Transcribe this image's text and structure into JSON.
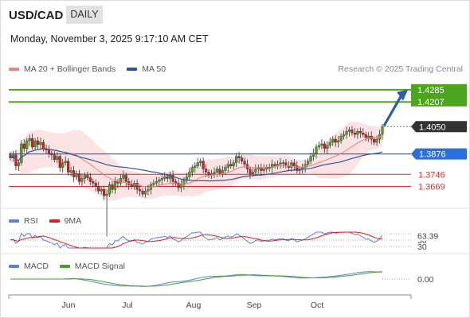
{
  "header": {
    "symbol": "USD/CAD",
    "timeframe": "DAILY",
    "datetime": "Monday, November 3, 2025 9:17:10 AM CET",
    "copyright": "Research © 2025 Trading Central"
  },
  "legend": {
    "main": [
      {
        "label": "MA 20 + Bollinger Bands",
        "color": "#f08080"
      },
      {
        "label": "MA 50",
        "color": "#2f5596"
      }
    ],
    "rsi": [
      {
        "label": "RSI",
        "color": "#5b7fd6"
      },
      {
        "label": "9MA",
        "color": "#d42020"
      }
    ],
    "macd": [
      {
        "label": "MACD",
        "color": "#5b7fd6"
      },
      {
        "label": "MACD Signal",
        "color": "#44a020"
      }
    ]
  },
  "chart_data": [
    {
      "type": "candlestick",
      "x_axis": {
        "tick_labels": [
          "Jun",
          "Jul",
          "Aug",
          "Sep",
          "Oct"
        ]
      },
      "y_range": [
        1.355,
        1.435
      ],
      "levels": [
        {
          "value": 1.4285,
          "label": "1.4285",
          "color": "#4ca51d",
          "style": "resistance"
        },
        {
          "value": 1.4207,
          "label": "1.4207",
          "color": "#4ca51d",
          "style": "resistance"
        },
        {
          "value": 1.405,
          "label": "1.4050",
          "color": "#333333",
          "style": "last-price"
        },
        {
          "value": 1.3876,
          "label": "1.3876",
          "color": "#2a6fdb",
          "style": "pivot"
        },
        {
          "value": 1.3746,
          "label": "1.3746",
          "color": "#d43030",
          "style": "support"
        },
        {
          "value": 1.3669,
          "label": "1.3669",
          "color": "#d43030",
          "style": "support"
        }
      ],
      "up_color": "#4ca51d",
      "down_color": "#d42020",
      "close": [
        1.385,
        1.387,
        1.38,
        1.382,
        1.394,
        1.391,
        1.396,
        1.3975,
        1.392,
        1.396,
        1.3935,
        1.395,
        1.391,
        1.39,
        1.388,
        1.387,
        1.384,
        1.386,
        1.379,
        1.382,
        1.383,
        1.376,
        1.377,
        1.373,
        1.375,
        1.37,
        1.372,
        1.374,
        1.3725,
        1.37,
        1.369,
        1.367,
        1.364,
        1.365,
        1.361,
        1.362,
        1.368,
        1.365,
        1.37,
        1.369,
        1.372,
        1.374,
        1.37,
        1.368,
        1.367,
        1.369,
        1.365,
        1.364,
        1.362,
        1.364,
        1.365,
        1.368,
        1.369,
        1.37,
        1.371,
        1.372,
        1.373,
        1.372,
        1.374,
        1.37,
        1.369,
        1.366,
        1.368,
        1.371,
        1.373,
        1.376,
        1.379,
        1.38,
        1.382,
        1.383,
        1.378,
        1.376,
        1.374,
        1.375,
        1.376,
        1.378,
        1.375,
        1.377,
        1.379,
        1.381,
        1.38,
        1.382,
        1.386,
        1.385,
        1.383,
        1.381,
        1.378,
        1.375,
        1.376,
        1.378,
        1.379,
        1.377,
        1.378,
        1.379,
        1.379,
        1.381,
        1.38,
        1.381,
        1.382,
        1.382,
        1.38,
        1.379,
        1.382,
        1.38,
        1.377,
        1.378,
        1.379,
        1.381,
        1.383,
        1.386,
        1.388,
        1.392,
        1.393,
        1.394,
        1.391,
        1.393,
        1.395,
        1.397,
        1.395,
        1.396,
        1.399,
        1.4,
        1.402,
        1.403,
        1.401,
        1.4,
        1.402,
        1.401,
        1.4,
        1.398,
        1.399,
        1.397,
        1.395,
        1.397,
        1.4,
        1.405
      ],
      "wicks": [
        {
          "index": 35,
          "low": 1.335
        }
      ],
      "overlays": [
        "MA 20",
        "Bollinger Bands",
        "MA 50"
      ]
    },
    {
      "type": "line",
      "name": "RSI",
      "value_label": "63.39",
      "ticks": [
        "70",
        "50",
        "30"
      ],
      "series": [
        {
          "name": "RSI"
        },
        {
          "name": "9MA"
        }
      ]
    },
    {
      "type": "line",
      "name": "MACD",
      "value_label": "0.00",
      "series": [
        {
          "name": "MACD"
        },
        {
          "name": "MACD Signal"
        }
      ]
    }
  ]
}
